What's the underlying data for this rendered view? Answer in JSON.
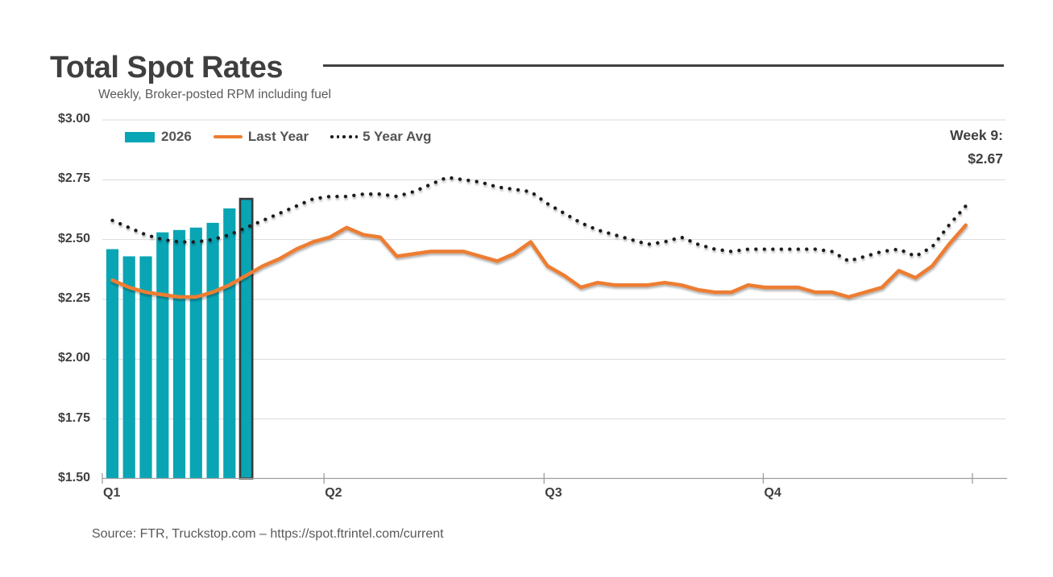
{
  "chart_data": {
    "type": "combo",
    "title": "Total Spot Rates",
    "subtitle": "Weekly, Broker-posted RPM including fuel",
    "x_unit": "week",
    "weeks_per_year": 52,
    "ylim": [
      1.5,
      3.0
    ],
    "grid": "horizontal",
    "legend_position": "top-left",
    "yticks": [
      {
        "value": 3.0,
        "label": "$3.00"
      },
      {
        "value": 2.75,
        "label": "$2.75"
      },
      {
        "value": 2.5,
        "label": "$2.50"
      },
      {
        "value": 2.25,
        "label": "$2.25"
      },
      {
        "value": 2.0,
        "label": "$2.00"
      },
      {
        "value": 1.75,
        "label": "$1.75"
      },
      {
        "value": 1.5,
        "label": "$1.50"
      }
    ],
    "xticks": [
      {
        "week": 0,
        "label": "Q1"
      },
      {
        "week": 13.25,
        "label": "Q2"
      },
      {
        "week": 26.4,
        "label": "Q3"
      },
      {
        "week": 39.5,
        "label": "Q4"
      },
      {
        "week": 52,
        "label": ""
      }
    ],
    "series": [
      {
        "name": "2026",
        "type": "bar",
        "color": "#09a5b4",
        "highlight_border_color": "#3a3a3a",
        "start_week": 1,
        "highlight_last": true,
        "values": [
          2.46,
          2.43,
          2.43,
          2.53,
          2.54,
          2.55,
          2.57,
          2.63,
          2.67
        ]
      },
      {
        "name": "Last Year",
        "type": "line",
        "color": "#ed7d31",
        "values": [
          2.33,
          2.3,
          2.28,
          2.27,
          2.26,
          2.26,
          2.28,
          2.31,
          2.35,
          2.39,
          2.42,
          2.46,
          2.49,
          2.51,
          2.55,
          2.52,
          2.51,
          2.43,
          2.44,
          2.45,
          2.45,
          2.45,
          2.43,
          2.41,
          2.44,
          2.49,
          2.39,
          2.35,
          2.3,
          2.32,
          2.31,
          2.31,
          2.31,
          2.32,
          2.31,
          2.29,
          2.28,
          2.28,
          2.31,
          2.3,
          2.3,
          2.3,
          2.28,
          2.28,
          2.26,
          2.28,
          2.3,
          2.37,
          2.34,
          2.39,
          2.48,
          2.56
        ]
      },
      {
        "name": "5 Year Avg",
        "type": "dotted-line",
        "color": "#1a1a1a",
        "values": [
          2.58,
          2.55,
          2.52,
          2.5,
          2.49,
          2.49,
          2.5,
          2.52,
          2.55,
          2.58,
          2.61,
          2.64,
          2.67,
          2.68,
          2.68,
          2.69,
          2.69,
          2.68,
          2.7,
          2.73,
          2.76,
          2.75,
          2.74,
          2.72,
          2.71,
          2.7,
          2.65,
          2.61,
          2.57,
          2.54,
          2.52,
          2.5,
          2.48,
          2.49,
          2.51,
          2.48,
          2.46,
          2.45,
          2.46,
          2.46,
          2.46,
          2.46,
          2.46,
          2.45,
          2.41,
          2.43,
          2.45,
          2.46,
          2.43,
          2.47,
          2.56,
          2.64
        ]
      }
    ],
    "annotation": {
      "lines": [
        "Week 9:",
        "$2.67"
      ]
    },
    "source": "Source: FTR, Truckstop.com – https://spot.ftrintel.com/current",
    "colors": {
      "grid": "#d9d9d9",
      "axis": "#9e9e9e",
      "title_text": "#3f3f3f",
      "muted_text": "#595959"
    }
  }
}
